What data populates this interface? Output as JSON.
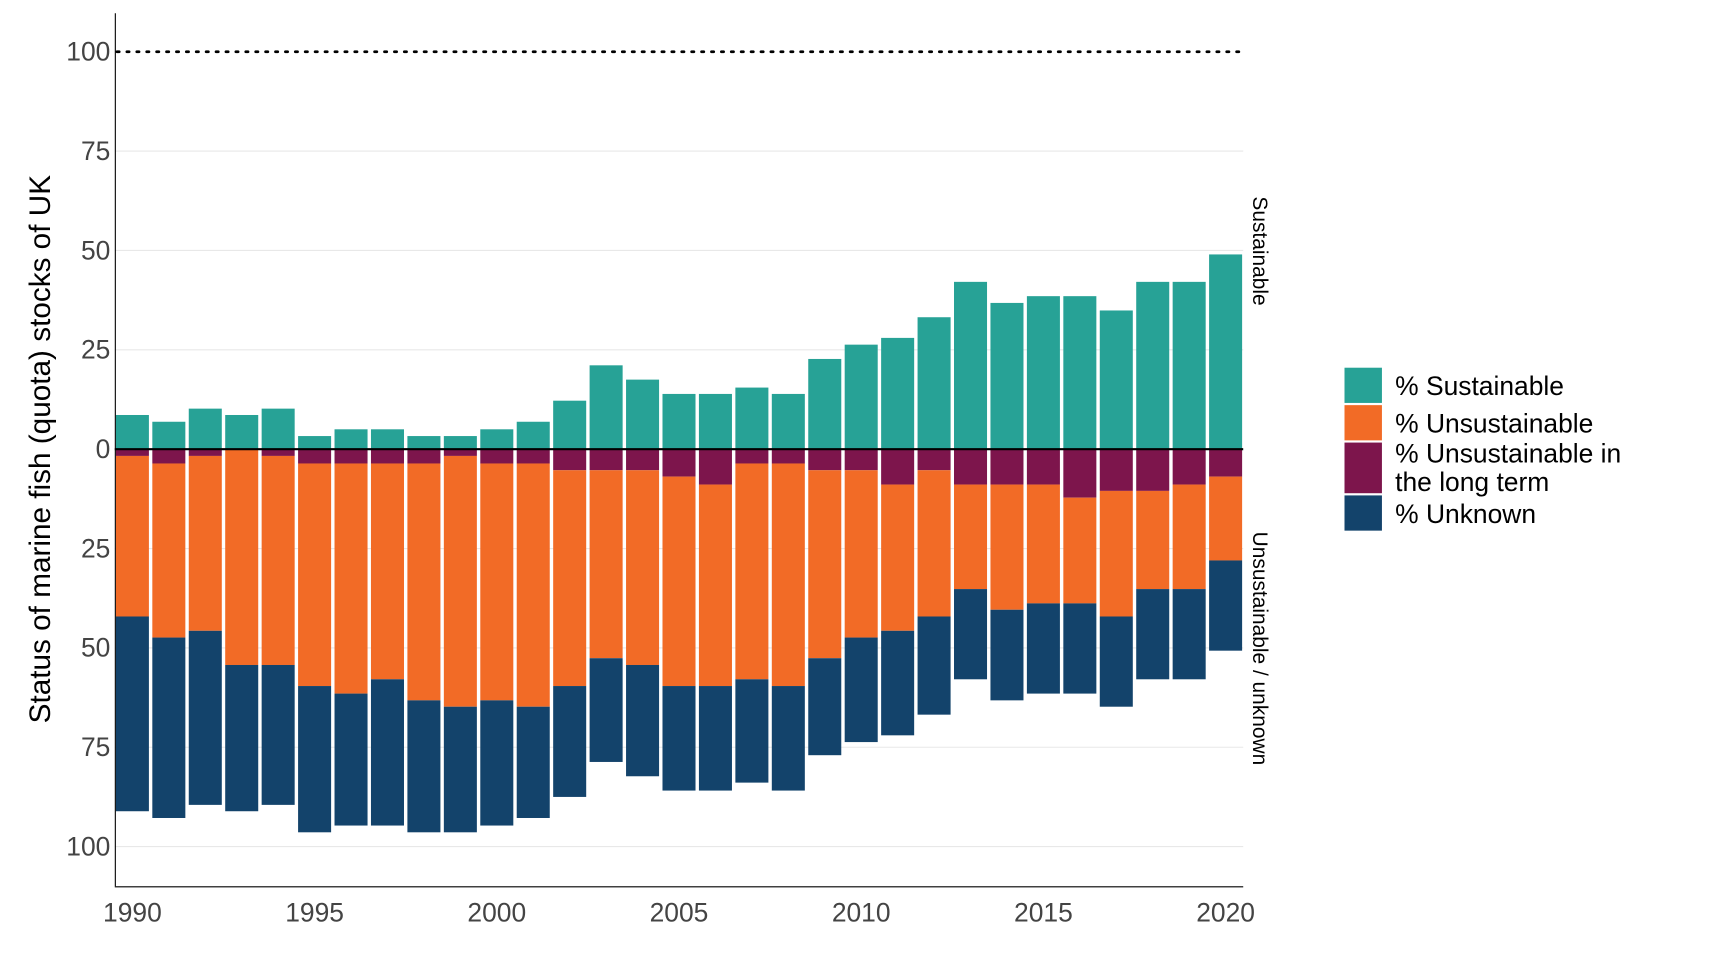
{
  "chart_data": {
    "type": "bar",
    "stacked": true,
    "ylabel": "Status of marine fish (quota) stocks of UK",
    "x": [
      1990,
      1991,
      1992,
      1993,
      1994,
      1995,
      1996,
      1997,
      1998,
      1999,
      2000,
      2001,
      2002,
      2003,
      2004,
      2005,
      2006,
      2007,
      2008,
      2009,
      2010,
      2011,
      2012,
      2013,
      2014,
      2015,
      2016,
      2017,
      2018,
      2019,
      2020
    ],
    "xticks": [
      "1990",
      "1995",
      "2000",
      "2005",
      "2010",
      "2015",
      "2020"
    ],
    "yticks_up": [
      "0",
      "25",
      "50",
      "75",
      "100"
    ],
    "yticks_down": [
      "25",
      "50",
      "75",
      "100"
    ],
    "ylim_up": [
      0,
      110
    ],
    "ylim_down": [
      0,
      110
    ],
    "reference_line": {
      "value": 100,
      "style": "dotted"
    },
    "facet_labels": {
      "up": "Sustainable",
      "down": "Unsustainable / unknown"
    },
    "grid": "horizontal",
    "legend_position": "right",
    "series": [
      {
        "name": "% Sustainable",
        "direction": "up",
        "color": "#27A296",
        "values": [
          8.6,
          6.9,
          10.2,
          8.6,
          10.2,
          3.3,
          5.0,
          5.0,
          3.3,
          3.3,
          5.0,
          6.9,
          12.2,
          21.1,
          17.5,
          13.9,
          13.9,
          15.5,
          13.9,
          22.7,
          26.3,
          28.0,
          33.2,
          42.1,
          36.8,
          38.5,
          38.5,
          34.9,
          42.1,
          42.1,
          49.0
        ]
      },
      {
        "name": "% Unsustainable",
        "direction": "down",
        "color": "#F26B26",
        "values": [
          40.4,
          43.8,
          44.0,
          54.3,
          52.6,
          56.0,
          57.9,
          54.3,
          59.6,
          63.1,
          59.6,
          61.2,
          54.3,
          47.3,
          49.0,
          52.7,
          50.7,
          54.3,
          56.0,
          47.3,
          42.1,
          36.8,
          36.8,
          26.3,
          31.5,
          29.9,
          26.6,
          31.6,
          24.7,
          26.3,
          21.1
        ]
      },
      {
        "name": "% Unsustainable in the long term",
        "direction": "down",
        "color": "#7D154C",
        "values": [
          1.7,
          3.6,
          1.7,
          0,
          1.7,
          3.6,
          3.6,
          3.6,
          3.6,
          1.7,
          3.6,
          3.6,
          5.3,
          5.3,
          5.3,
          6.9,
          8.9,
          3.6,
          3.6,
          5.3,
          5.3,
          8.9,
          5.3,
          8.9,
          8.9,
          8.9,
          12.2,
          10.5,
          10.5,
          8.9,
          6.9
        ]
      },
      {
        "name": "% Unknown",
        "direction": "down",
        "color": "#13436B",
        "values": [
          49.0,
          45.4,
          43.8,
          36.8,
          35.2,
          36.8,
          33.2,
          36.8,
          33.2,
          31.6,
          31.5,
          28.0,
          27.9,
          26.1,
          28.0,
          26.3,
          26.3,
          26.0,
          26.3,
          24.4,
          26.3,
          26.3,
          24.7,
          22.7,
          22.8,
          22.7,
          22.7,
          22.7,
          22.7,
          22.7,
          22.7
        ]
      }
    ],
    "legend": [
      {
        "label_line1": "% Sustainable",
        "label_line2": "",
        "color": "#27A296"
      },
      {
        "label_line1": "% Unsustainable",
        "label_line2": "",
        "color": "#F26B26"
      },
      {
        "label_line1": "% Unsustainable in",
        "label_line2": "the long term",
        "color": "#7D154C"
      },
      {
        "label_line1": "% Unknown",
        "label_line2": "",
        "color": "#13436B"
      }
    ]
  }
}
